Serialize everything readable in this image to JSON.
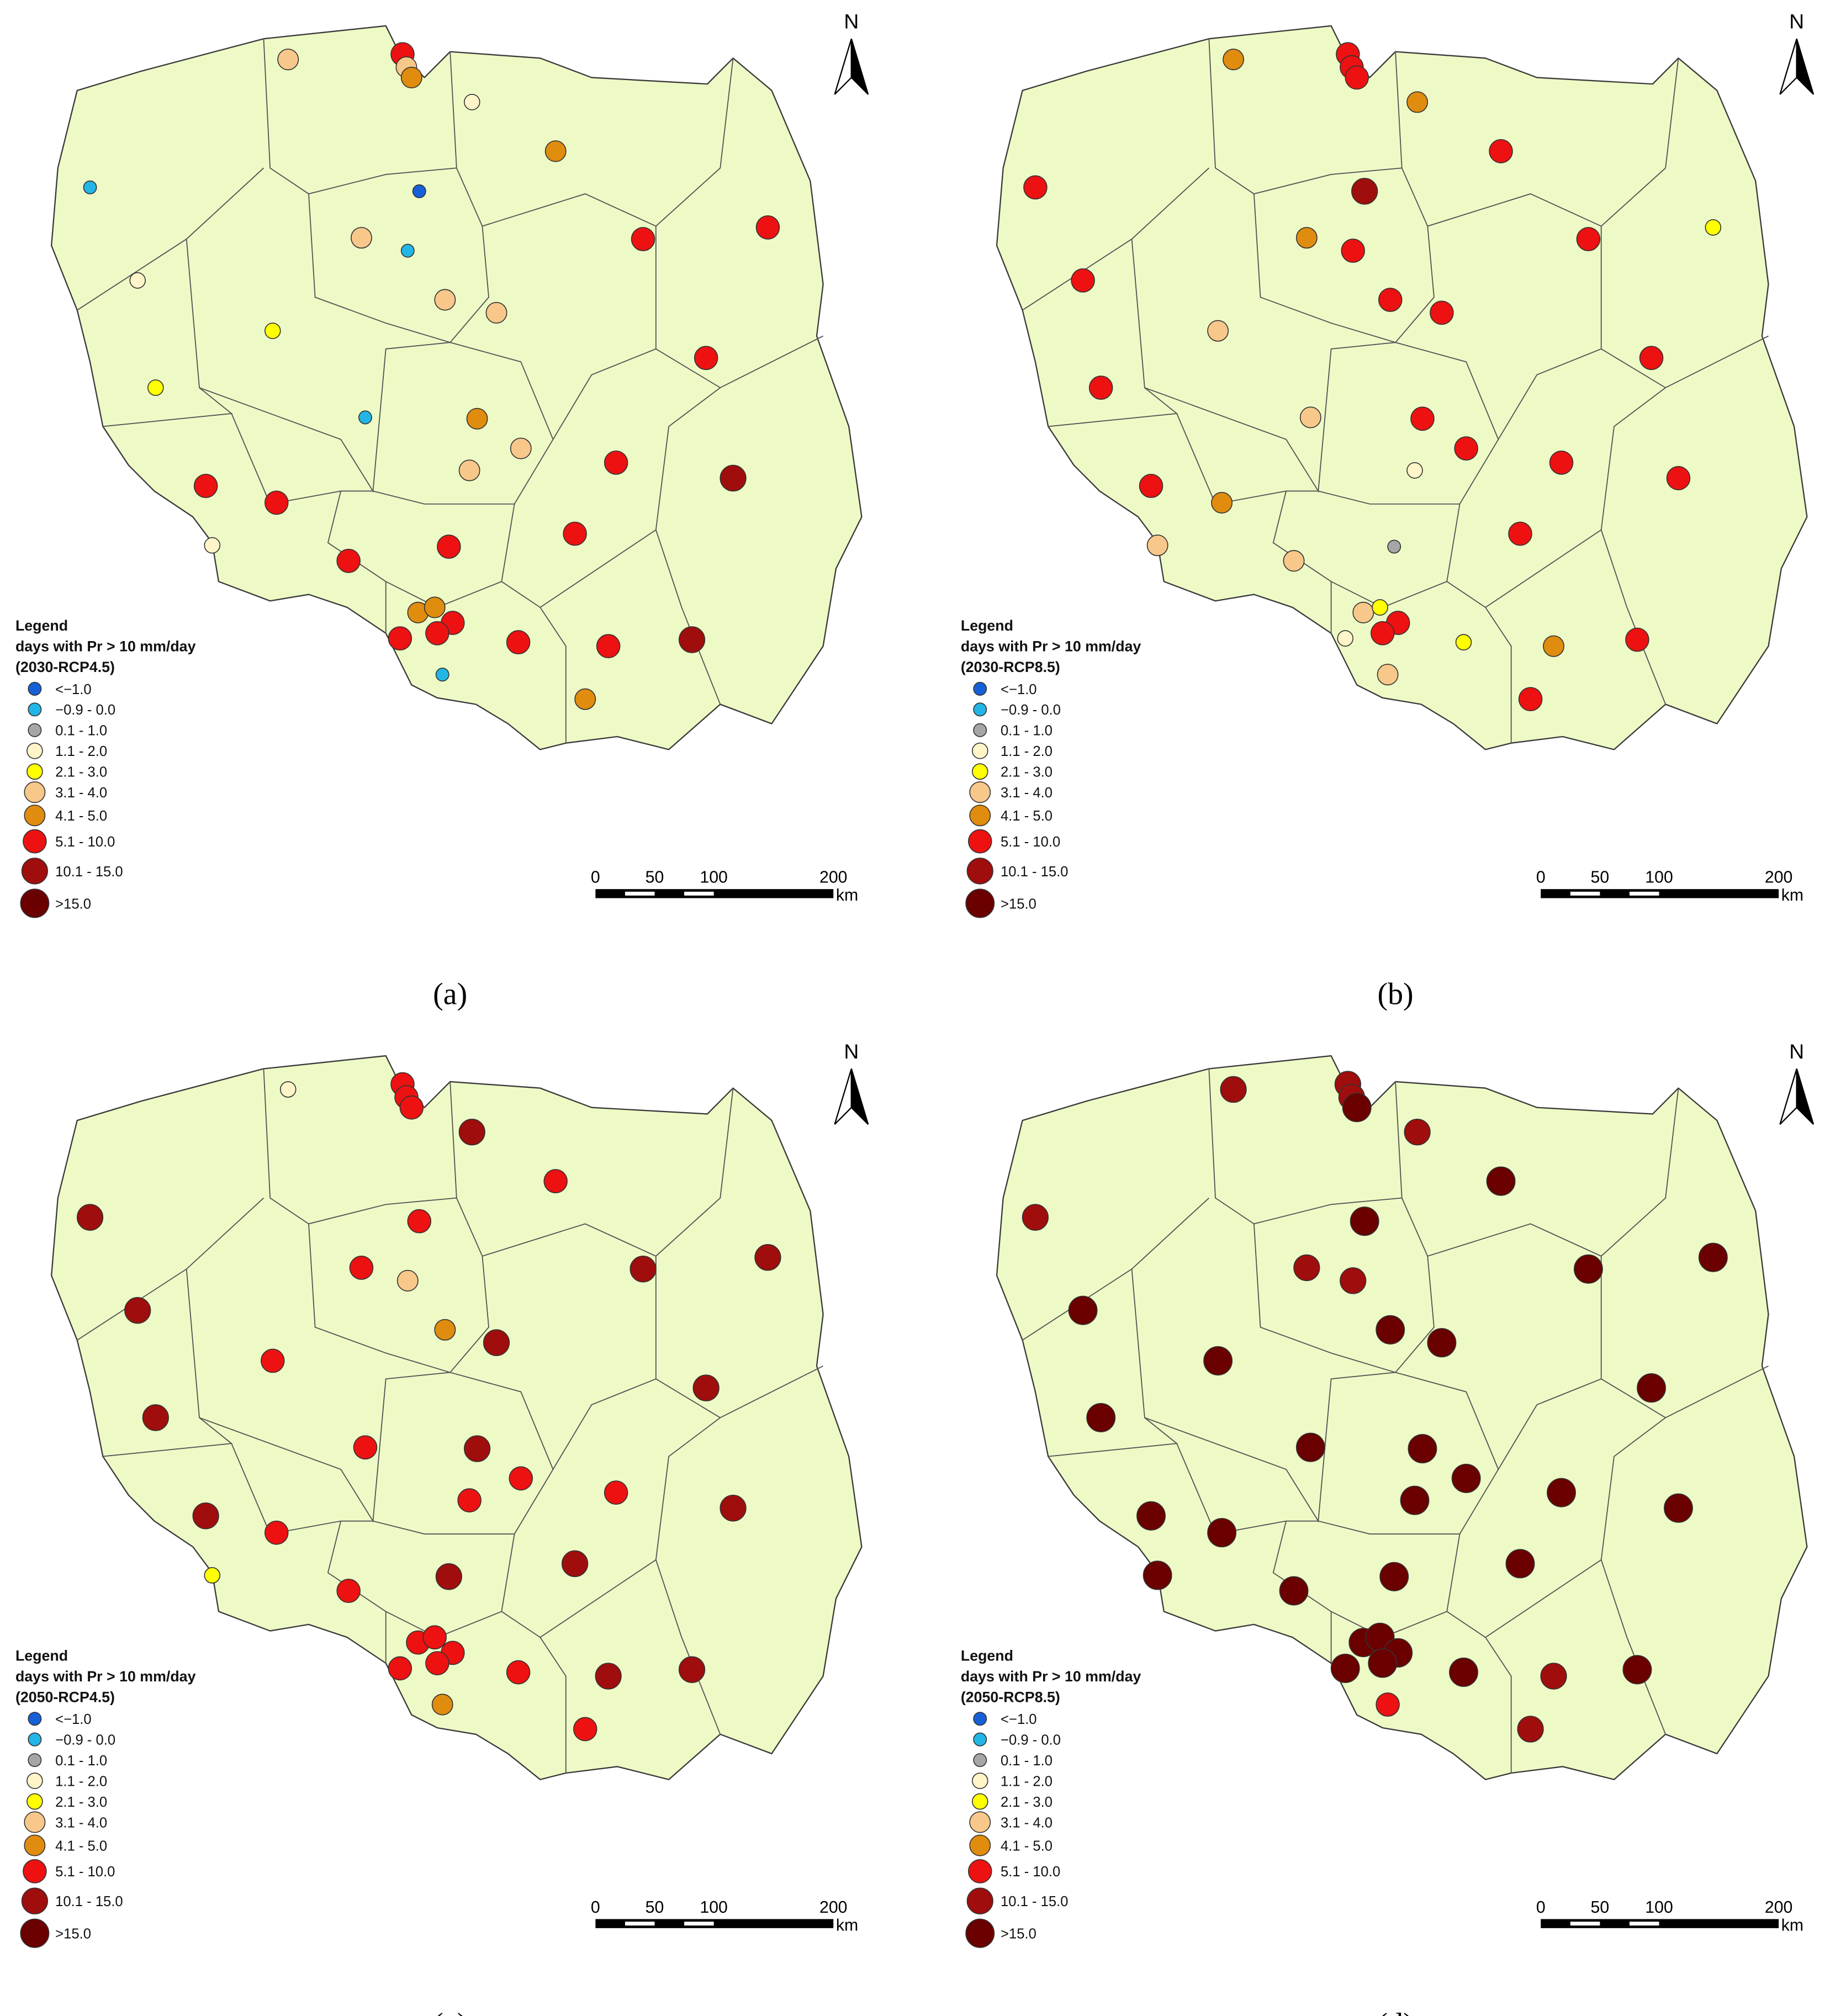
{
  "legend": {
    "title": "Legend",
    "subtitle": "days with Pr > 10 mm/day",
    "items": [
      {
        "label": "<−1.0",
        "color": "#1560d8"
      },
      {
        "label": "−0.9 - 0.0",
        "color": "#22b5e6"
      },
      {
        "label": "0.1 - 1.0",
        "color": "#a6a6a6"
      },
      {
        "label": "1.1 - 2.0",
        "color": "#fff5c8"
      },
      {
        "label": "2.1 - 3.0",
        "color": "#ffff00"
      },
      {
        "label": "3.1 - 4.0",
        "color": "#f8c78a"
      },
      {
        "label": "4.1 - 5.0",
        "color": "#e08c0e"
      },
      {
        "label": "5.1 - 10.0",
        "color": "#ee1111"
      },
      {
        "label": "10.1 - 15.0",
        "color": "#a00d0d"
      },
      {
        "label": ">15.0",
        "color": "#6b0000"
      }
    ]
  },
  "scale_bar": {
    "ticks": [
      "0",
      "50",
      "100",
      "200"
    ],
    "unit": "km"
  },
  "north": "N",
  "panels": [
    {
      "scenario": "(2030-RCP4.5)",
      "caption": "(a)"
    },
    {
      "scenario": "(2030-RCP8.5)",
      "caption": "(b)"
    },
    {
      "scenario": "(2050-RCP4.5)",
      "caption": "(c)"
    },
    {
      "scenario": "(2050-RCP8.5)",
      "caption": "(d)"
    }
  ]
}
